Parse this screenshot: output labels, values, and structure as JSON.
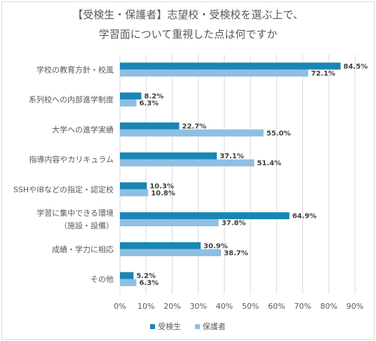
{
  "chart_data": {
    "type": "bar",
    "orientation": "horizontal",
    "title_lines": [
      "【受検生・保護者】志望校・受検校を選ぶ上で、",
      "学習面について重視した点は何ですか"
    ],
    "categories": [
      [
        "学校の教育方針・校風"
      ],
      [
        "系列校への内部進学制度"
      ],
      [
        "大学への進学実績"
      ],
      [
        "指導内容やカリキュラム"
      ],
      [
        "SSHやIBなどの指定・認定校"
      ],
      [
        "学習に集中できる環境",
        "（施設・設備）"
      ],
      [
        "成績・学力に相応"
      ],
      [
        "その他"
      ]
    ],
    "series": [
      {
        "name": "受検生",
        "color": "#1a86b5",
        "values": [
          84.5,
          8.2,
          22.7,
          37.1,
          10.3,
          64.9,
          30.9,
          5.2
        ]
      },
      {
        "name": "保護者",
        "color": "#8ebfe3",
        "values": [
          72.1,
          6.3,
          55.0,
          51.4,
          10.8,
          37.8,
          38.7,
          6.3
        ]
      }
    ],
    "data_labels": [
      [
        "84.5%",
        "8.2%",
        "22.7%",
        "37.1%",
        "10.3%",
        "64.9%",
        "30.9%",
        "5.2%"
      ],
      [
        "72.1%",
        "6.3%",
        "55.0%",
        "51.4%",
        "10.8%",
        "37.8%",
        "38.7%",
        "6.3%"
      ]
    ],
    "xlim": [
      0,
      90
    ],
    "x_ticks": [
      0,
      10,
      20,
      30,
      40,
      50,
      60,
      70,
      80,
      90
    ],
    "x_tick_labels": [
      "0%",
      "10%",
      "20%",
      "30%",
      "40%",
      "50%",
      "60%",
      "70%",
      "80%",
      "90%"
    ],
    "grid": true,
    "legend_position": "bottom"
  }
}
